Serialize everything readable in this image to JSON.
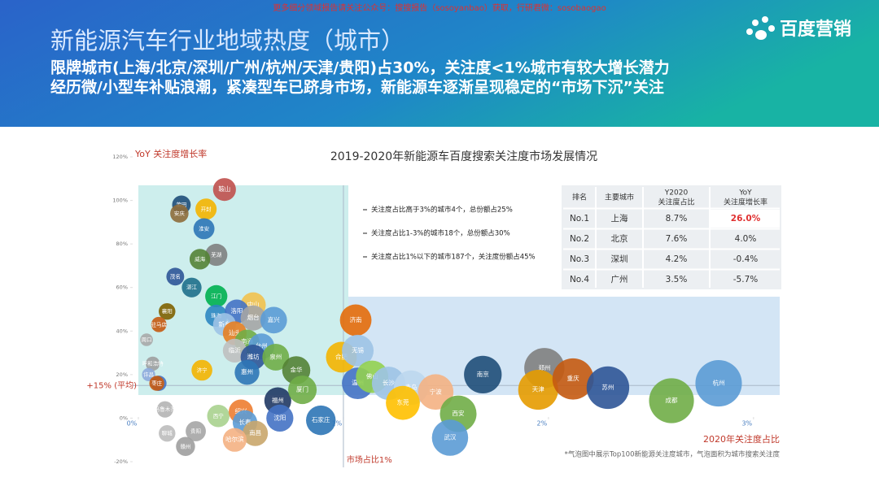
{
  "header": {
    "source_note": "更多细分领域报告请关注公众号：搜搜报告（sosoyanbao）获取，行研君微：sosobaogao",
    "title": "新能源汽车行业地域热度（城市）",
    "subtitle_1": "限牌城市(上海/北京/深圳/广州/杭州/天津/贵阳)占30%，关注度<1%城市有较大增长潜力",
    "subtitle_2": "经历微/小型车补贴浪潮，紧凑型车已跻身市场，新能源车逐渐呈现稳定的“市场下沉”关注",
    "logo": "百度营销"
  },
  "chart_data": {
    "type": "bubble",
    "title": "2019-2020年新能源车百度搜索关注度市场发展情况",
    "x_label": "2020年关注度占比",
    "y_label": "YoY 关注度增长率",
    "xlim": [
      0,
      3.1
    ],
    "ylim": [
      -20,
      120
    ],
    "xticks": [
      {
        "value": 0,
        "label": "0%"
      },
      {
        "value": 1,
        "label": "1%"
      },
      {
        "value": 2,
        "label": "2%"
      },
      {
        "value": 3,
        "label": "3%"
      }
    ],
    "yticks": [
      {
        "value": -20,
        "label": "-20%"
      },
      {
        "value": 0,
        "label": "0%"
      },
      {
        "value": 20,
        "label": "20%"
      },
      {
        "value": 40,
        "label": "40%"
      },
      {
        "value": 60,
        "label": "60%"
      },
      {
        "value": 80,
        "label": "80%"
      },
      {
        "value": 100,
        "label": "100%"
      },
      {
        "value": 120,
        "label": "120%"
      }
    ],
    "ref_y": {
      "value": 15,
      "label": "+15% (平均)"
    },
    "ref_x": {
      "value": 1,
      "label": "市场占比1%"
    },
    "labels": [
      "鞍山",
      "莆田",
      "开封",
      "安庆",
      "淮安",
      "芜湖",
      "威海",
      "茂名",
      "湛江",
      "江门",
      "中山",
      "珠海",
      "洛阳",
      "烟台",
      "嘉兴",
      "襄阳",
      "驻马店",
      "新乡",
      "周口",
      "汕头",
      "南通",
      "台州",
      "临沂",
      "潍坊",
      "泉州",
      "呼和浩特",
      "许昌",
      "阜阳",
      "枣庄",
      "济宁",
      "惠州",
      "金华",
      "温州",
      "福州",
      "厦门",
      "乌鲁木齐",
      "西宁",
      "绍兴",
      "石家庄",
      "长春",
      "南昌",
      "聊城",
      "贵阳",
      "赣州",
      "哈尔滨",
      "沈阳",
      "济南",
      "合肥",
      "无锡",
      "佛山",
      "长沙",
      "青岛",
      "东莞",
      "宁波",
      "西安",
      "武汉",
      "南京",
      "郑州",
      "天津",
      "重庆",
      "苏州",
      "成都",
      "杭州"
    ],
    "x": [
      0.42,
      0.21,
      0.33,
      0.2,
      0.32,
      0.38,
      0.3,
      0.18,
      0.26,
      0.38,
      0.56,
      0.38,
      0.48,
      0.56,
      0.66,
      0.14,
      0.1,
      0.42,
      0.04,
      0.47,
      0.53,
      0.6,
      0.47,
      0.56,
      0.67,
      0.07,
      0.05,
      0.1,
      0.09,
      0.31,
      0.53,
      0.77,
      1.07,
      0.68,
      0.8,
      0.13,
      0.39,
      0.5,
      0.89,
      0.52,
      0.57,
      0.14,
      0.28,
      0.23,
      0.47,
      0.69,
      1.06,
      0.99,
      1.07,
      1.14,
      1.22,
      1.33,
      1.29,
      1.45,
      1.56,
      1.52,
      1.68,
      1.98,
      1.95,
      2.12,
      2.29,
      2.6,
      2.83
    ],
    "values": [
      105,
      98,
      96,
      94,
      87,
      75,
      73,
      65,
      60,
      56,
      52,
      47,
      49,
      46,
      45,
      49,
      43,
      43,
      36,
      39,
      35,
      33,
      31,
      28,
      28,
      25,
      20,
      16,
      16,
      22,
      21,
      22,
      16,
      8,
      13,
      4,
      1,
      3,
      -1,
      -2,
      -7,
      -7,
      -6,
      -13,
      -10,
      0,
      45,
      28,
      31,
      19,
      16,
      14,
      7,
      12,
      2,
      -9,
      20,
      23,
      13,
      18,
      14,
      8,
      16
    ],
    "colors": [
      "#c0504d",
      "#1f4e79",
      "#f4b400",
      "#8e6c3a",
      "#2e75b6",
      "#7f7f7f",
      "#548235",
      "#2f5597",
      "#1f6f8b",
      "#00b050",
      "#f2c14e",
      "#2e86c1",
      "#4472c4",
      "#a5a5a5",
      "#5b9bd5",
      "#7f6000",
      "#c55a11",
      "#9dc3e6",
      "#a9a9a9",
      "#e67e22",
      "#70ad47",
      "#5b9bd5",
      "#bfbfbf",
      "#2f5597",
      "#70ad47",
      "#9e9e9e",
      "#8eaadb",
      "#4472c4",
      "#c55a11",
      "#f4b400",
      "#2e75b6",
      "#548235",
      "#4472c4",
      "#203864",
      "#70ad47",
      "#b4b4b4",
      "#a9d18e",
      "#ed7d31",
      "#2e75b6",
      "#5b9bd5",
      "#c9a66b",
      "#bdbdbd",
      "#a5a5a5",
      "#9e9e9e",
      "#f4b183",
      "#4472c4",
      "#e46c0a",
      "#f4b400",
      "#9dc3e6",
      "#92d050",
      "#9dc3e6",
      "#bdd7ee",
      "#ffc000",
      "#f4b183",
      "#70ad47",
      "#5b9bd5",
      "#1f4e79",
      "#7f7f7f",
      "#e69b00",
      "#c55a11",
      "#2f5597",
      "#70ad47",
      "#5b9bd5"
    ],
    "annotations": [
      "关注度占比高于3%的城市4个，总份额占25%",
      "关注度占比1-3%的城市18个，总份额占30%",
      "关注度占比1%以下的城市187个，关注度份额占45%"
    ],
    "footnote": "*气泡图中展示Top100新能源关注度城市，气泡面积为城市搜索关注度"
  },
  "table": {
    "header": [
      "排名",
      "主要城市",
      "Y2020\n关注度占比",
      "YoY\n关注度增长率"
    ],
    "rows": [
      [
        "No.1",
        "上海",
        "8.7%",
        "26.0%"
      ],
      [
        "No.2",
        "北京",
        "7.6%",
        "4.0%"
      ],
      [
        "No.3",
        "深圳",
        "4.2%",
        "-0.4%"
      ],
      [
        "No.4",
        "广州",
        "3.5%",
        "-5.7%"
      ]
    ]
  }
}
